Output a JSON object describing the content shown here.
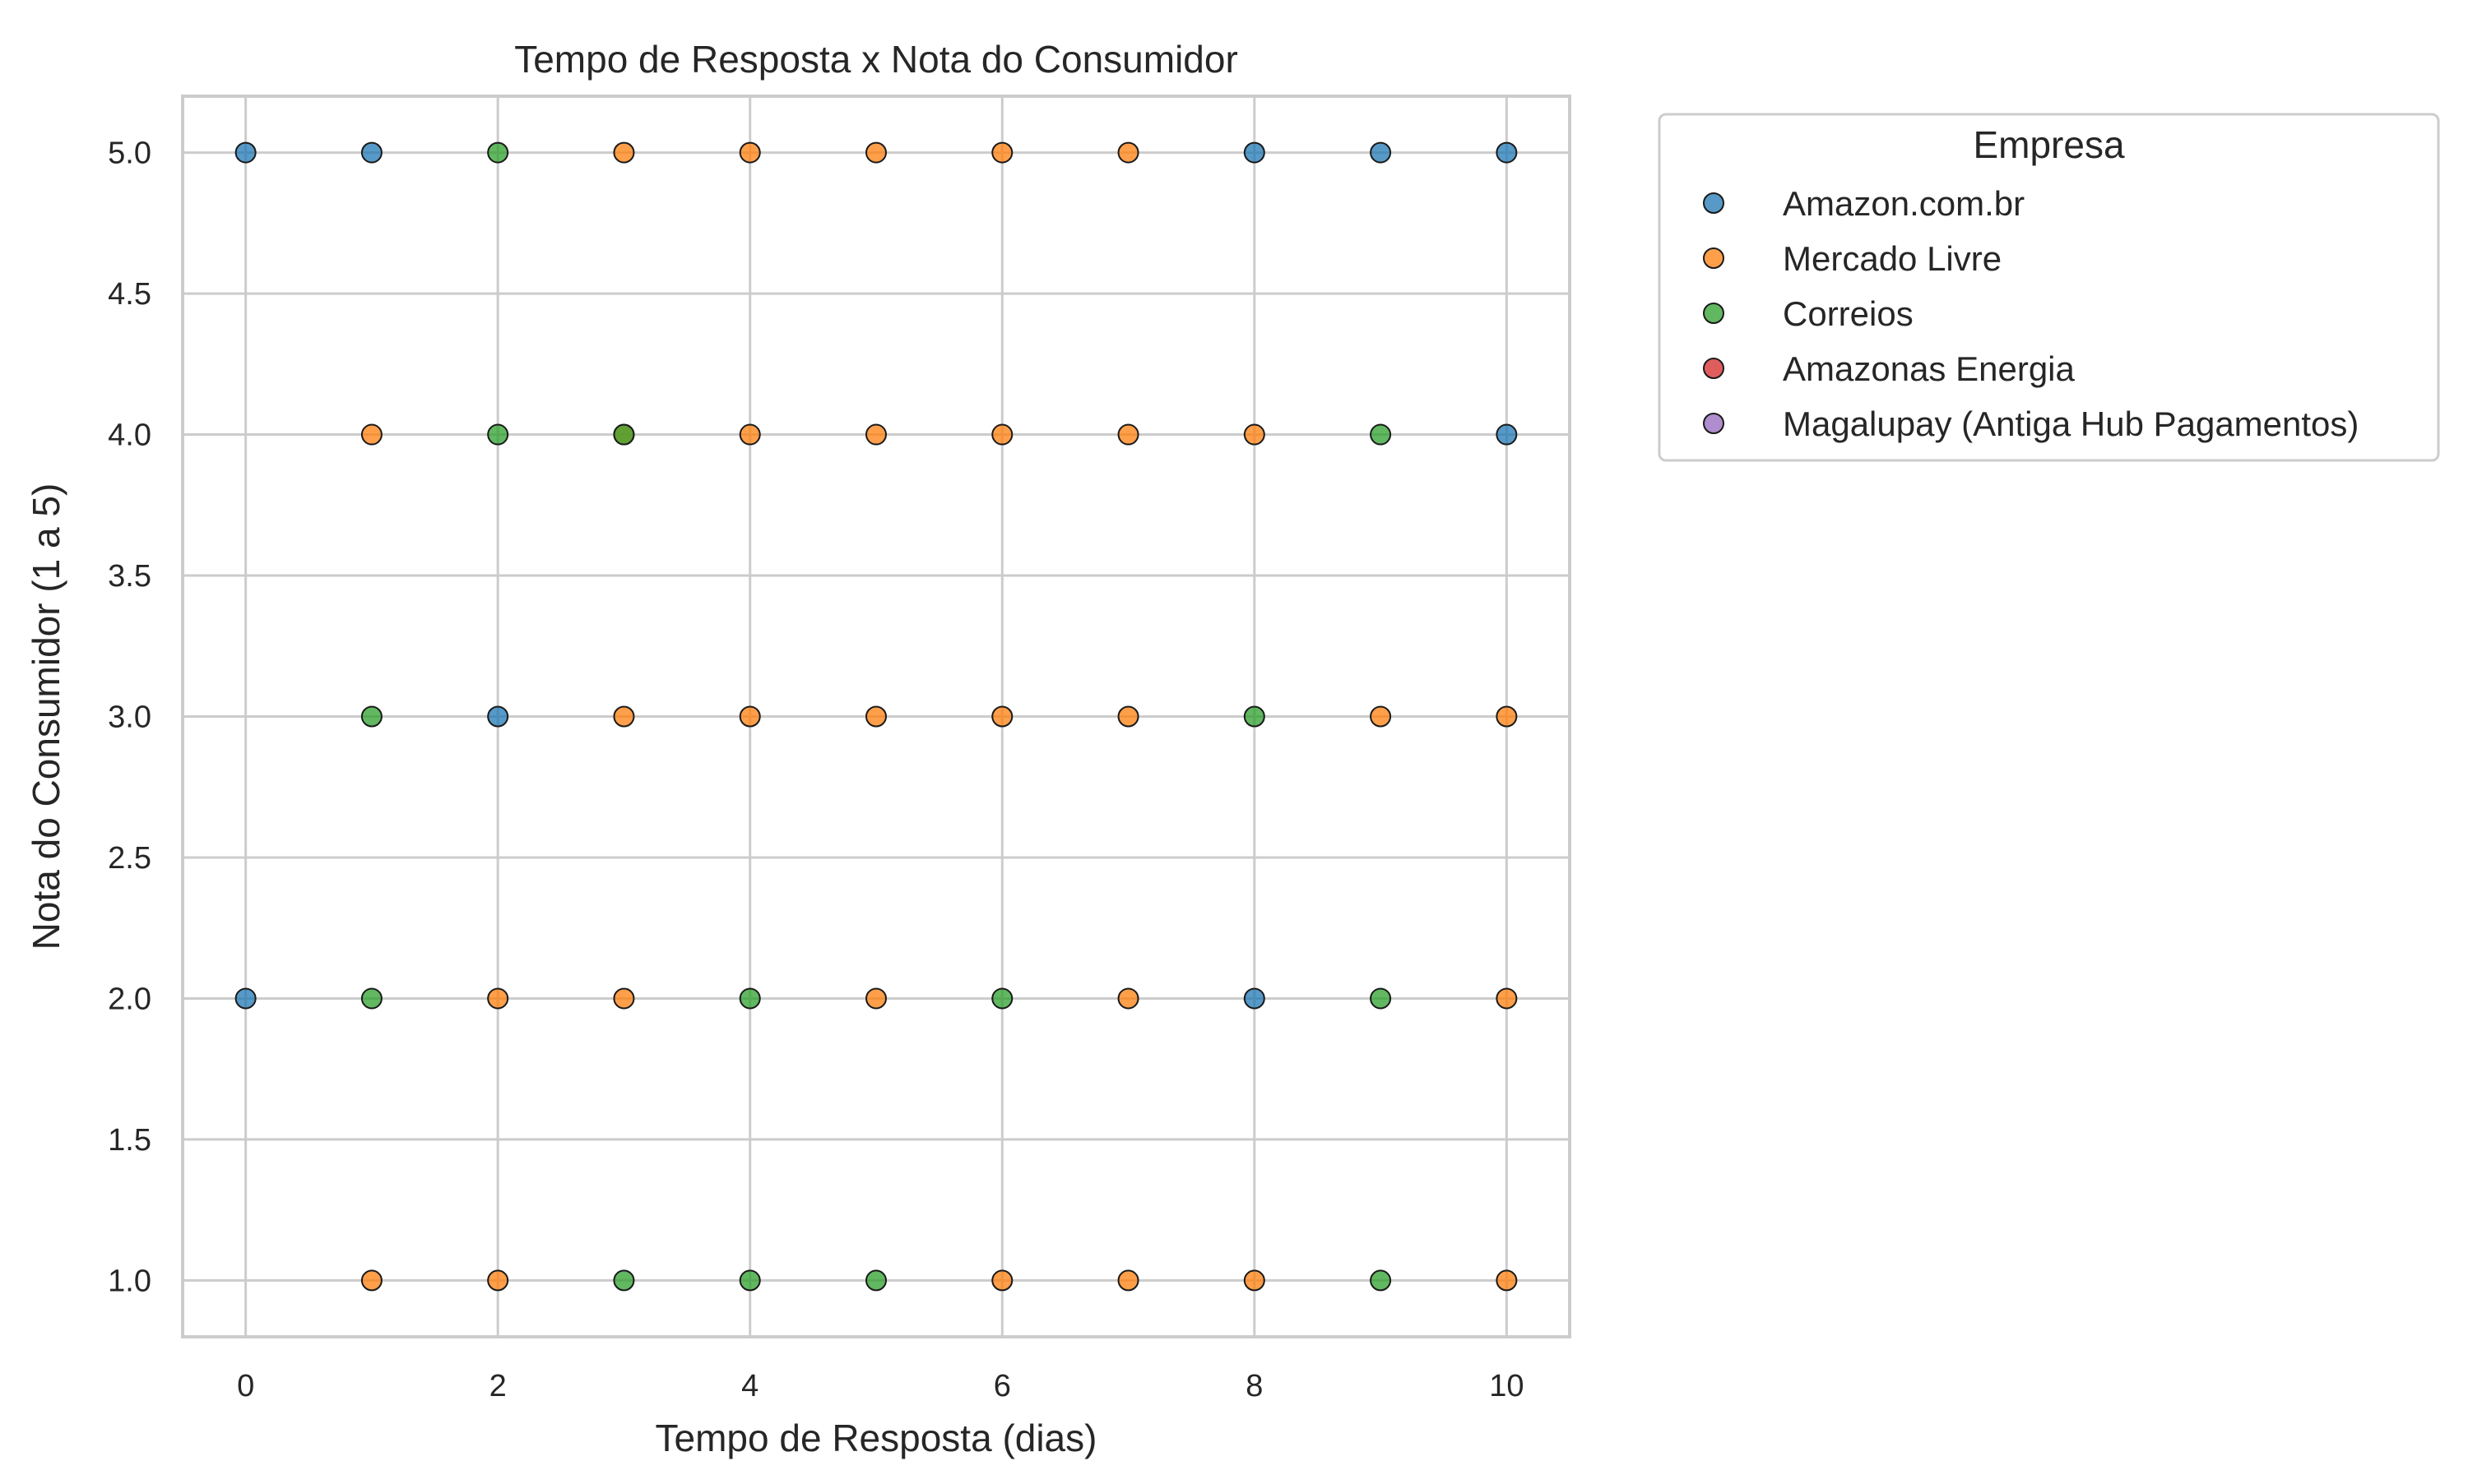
{
  "chart_data": {
    "type": "scatter",
    "title": "Tempo de Resposta x Nota do Consumidor",
    "xlabel": "Tempo de Resposta (dias)",
    "ylabel": "Nota do Consumidor (1 a 5)",
    "xlim": [
      -0.5,
      10.5
    ],
    "ylim": [
      0.8,
      5.2
    ],
    "xticks": [
      0,
      2,
      4,
      6,
      8,
      10
    ],
    "xtick_labels": [
      "0",
      "2",
      "4",
      "6",
      "8",
      "10"
    ],
    "yticks": [
      1.0,
      1.5,
      2.0,
      2.5,
      3.0,
      3.5,
      4.0,
      4.5,
      5.0
    ],
    "ytick_labels": [
      "1.0",
      "1.5",
      "2.0",
      "2.5",
      "3.0",
      "3.5",
      "4.0",
      "4.5",
      "5.0"
    ],
    "grid": true,
    "legend": {
      "title": "Empresa",
      "placement": "outside-top-right"
    },
    "series": [
      {
        "name": "Amazon.com.br",
        "color": "#1f77b4",
        "points": [
          [
            0,
            5
          ],
          [
            1,
            5
          ],
          [
            8,
            5
          ],
          [
            9,
            5
          ],
          [
            10,
            5
          ],
          [
            10,
            4
          ],
          [
            2,
            3
          ],
          [
            0,
            2
          ],
          [
            8,
            2
          ]
        ]
      },
      {
        "name": "Mercado Livre",
        "color": "#ff7f0e",
        "points": [
          [
            3,
            5
          ],
          [
            4,
            5
          ],
          [
            5,
            5
          ],
          [
            6,
            5
          ],
          [
            7,
            5
          ],
          [
            1,
            4
          ],
          [
            3,
            4
          ],
          [
            4,
            4
          ],
          [
            5,
            4
          ],
          [
            6,
            4
          ],
          [
            7,
            4
          ],
          [
            8,
            4
          ],
          [
            3,
            3
          ],
          [
            4,
            3
          ],
          [
            5,
            3
          ],
          [
            6,
            3
          ],
          [
            7,
            3
          ],
          [
            9,
            3
          ],
          [
            10,
            3
          ],
          [
            2,
            2
          ],
          [
            3,
            2
          ],
          [
            5,
            2
          ],
          [
            7,
            2
          ],
          [
            10,
            2
          ],
          [
            1,
            1
          ],
          [
            2,
            1
          ],
          [
            6,
            1
          ],
          [
            7,
            1
          ],
          [
            8,
            1
          ],
          [
            10,
            1
          ]
        ]
      },
      {
        "name": "Correios",
        "color": "#2ca02c",
        "points": [
          [
            2,
            5
          ],
          [
            2,
            4
          ],
          [
            3,
            4
          ],
          [
            9,
            4
          ],
          [
            1,
            3
          ],
          [
            8,
            3
          ],
          [
            1,
            2
          ],
          [
            4,
            2
          ],
          [
            6,
            2
          ],
          [
            9,
            2
          ],
          [
            3,
            1
          ],
          [
            4,
            1
          ],
          [
            5,
            1
          ],
          [
            9,
            1
          ]
        ]
      },
      {
        "name": "Amazonas Energia",
        "color": "#d62728",
        "points": []
      },
      {
        "name": "Magalupay (Antiga Hub Pagamentos)",
        "color": "#9467bd",
        "points": []
      }
    ]
  }
}
